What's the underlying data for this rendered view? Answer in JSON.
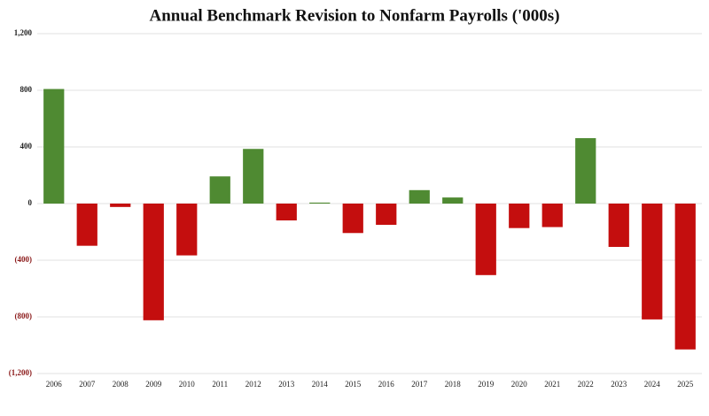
{
  "chart_data": {
    "type": "bar",
    "title": "Annual Benchmark Revision to Nonfarm Payrolls ('000s)",
    "categories": [
      "2006",
      "2007",
      "2008",
      "2009",
      "2010",
      "2011",
      "2012",
      "2013",
      "2014",
      "2015",
      "2016",
      "2017",
      "2018",
      "2019",
      "2020",
      "2021",
      "2022",
      "2023",
      "2024",
      "2025"
    ],
    "values": [
      809,
      -298,
      -24,
      -824,
      -366,
      192,
      386,
      -119,
      7,
      -208,
      -150,
      95,
      43,
      -505,
      -173,
      -166,
      462,
      -306,
      -818,
      -1030
    ],
    "positive_color": "#4f8a32",
    "negative_color": "#c40e0e",
    "ylim": [
      -1200,
      1200
    ],
    "yticks": [
      {
        "value": 1200,
        "label": "1,200"
      },
      800,
      400,
      0,
      {
        "value": -400,
        "label": "(400)"
      },
      {
        "value": -800,
        "label": "(800)"
      },
      {
        "value": -1200,
        "label": "(1,200)"
      }
    ],
    "grid": true
  }
}
